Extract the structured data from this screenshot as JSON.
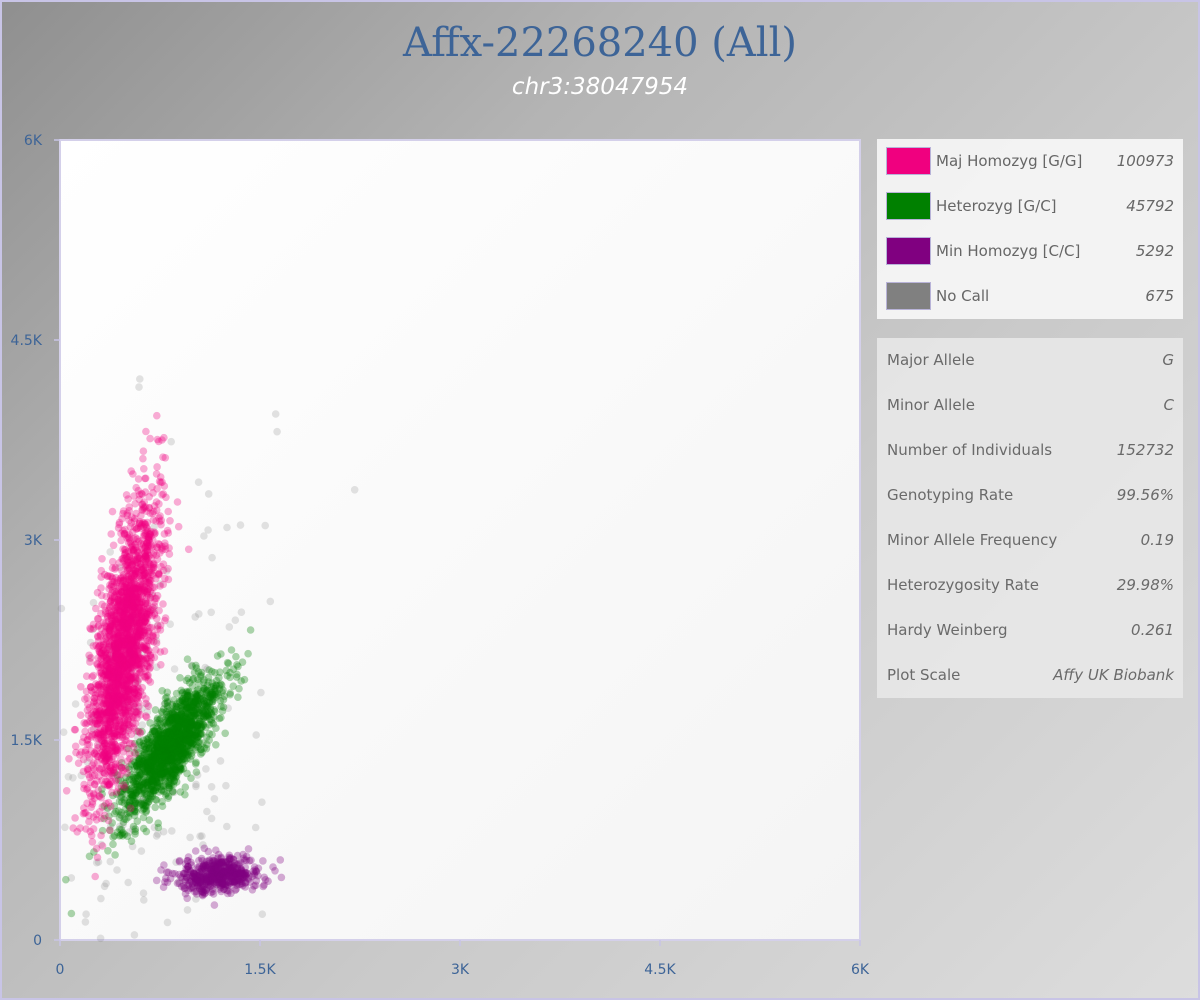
{
  "title": "Affx-22268240 (All)",
  "subtitle": "chr3:38047954",
  "chart_data": {
    "type": "scatter",
    "xlim": [
      0,
      6000
    ],
    "ylim": [
      0,
      6000
    ],
    "x_ticks": [
      "0",
      "1.5K",
      "3K",
      "4.5K",
      "6K"
    ],
    "y_ticks": [
      "0",
      "1.5K",
      "3K",
      "4.5K",
      "6K"
    ],
    "grid": false,
    "legend_placement": "right",
    "series": [
      {
        "name": "Maj Homozyg [G/G]",
        "count": 100973,
        "color": "#f0007f",
        "center": [
          480,
          2200
        ],
        "spread": [
          130,
          520
        ],
        "corr": 0.65
      },
      {
        "name": "Heterozyg [G/C]",
        "count": 45792,
        "color": "#008000",
        "center": [
          830,
          1450
        ],
        "spread": [
          190,
          260
        ],
        "corr": 0.8
      },
      {
        "name": "Min Homozyg [C/C]",
        "count": 5292,
        "color": "#800080",
        "center": [
          1190,
          490
        ],
        "spread": [
          160,
          70
        ],
        "corr": 0.2
      },
      {
        "name": "No Call",
        "count": 675,
        "color": "#808080",
        "center": [
          600,
          1500
        ],
        "spread": [
          500,
          1100
        ],
        "corr": 0.3
      }
    ]
  },
  "stats": [
    {
      "label": "Major Allele",
      "value": "G"
    },
    {
      "label": "Minor Allele",
      "value": "C"
    },
    {
      "label": "Number of Individuals",
      "value": "152732"
    },
    {
      "label": "Genotyping Rate",
      "value": "99.56%"
    },
    {
      "label": "Minor Allele Frequency",
      "value": "0.19"
    },
    {
      "label": "Heterozygosity Rate",
      "value": "29.98%"
    },
    {
      "label": "Hardy Weinberg",
      "value": "0.261"
    },
    {
      "label": "Plot Scale",
      "value": "Affy UK Biobank"
    }
  ]
}
